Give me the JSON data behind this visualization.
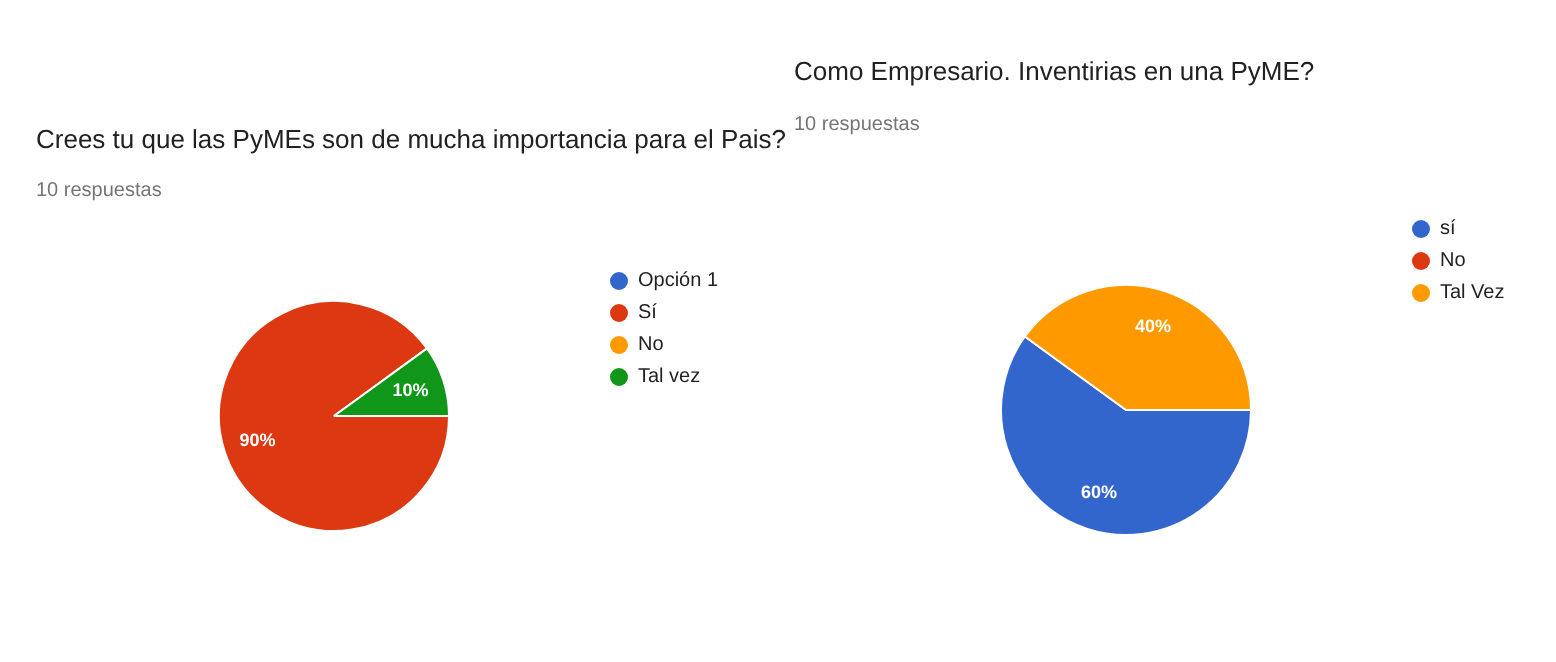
{
  "chart_data": [
    {
      "type": "pie",
      "title": "Crees tu que las PyMEs son de mucha importancia para el Pais?",
      "subtitle": "10 respuestas",
      "categories": [
        "Opción 1",
        "Sí",
        "No",
        "Tal vez"
      ],
      "values": [
        0,
        90,
        0,
        10
      ],
      "colors": [
        "#3366cc",
        "#dc3912",
        "#ff9900",
        "#109618"
      ],
      "value_labels": [
        null,
        "90%",
        null,
        "10%"
      ],
      "legend": "right"
    },
    {
      "type": "pie",
      "title": "Como Empresario. Inventirias en una PyME?",
      "subtitle": "10 respuestas",
      "categories": [
        "sí",
        "No",
        "Tal Vez"
      ],
      "values": [
        60,
        0,
        40
      ],
      "colors": [
        "#3366cc",
        "#dc3912",
        "#ff9900"
      ],
      "value_labels": [
        "60%",
        null,
        "40%"
      ],
      "legend": "right"
    }
  ]
}
